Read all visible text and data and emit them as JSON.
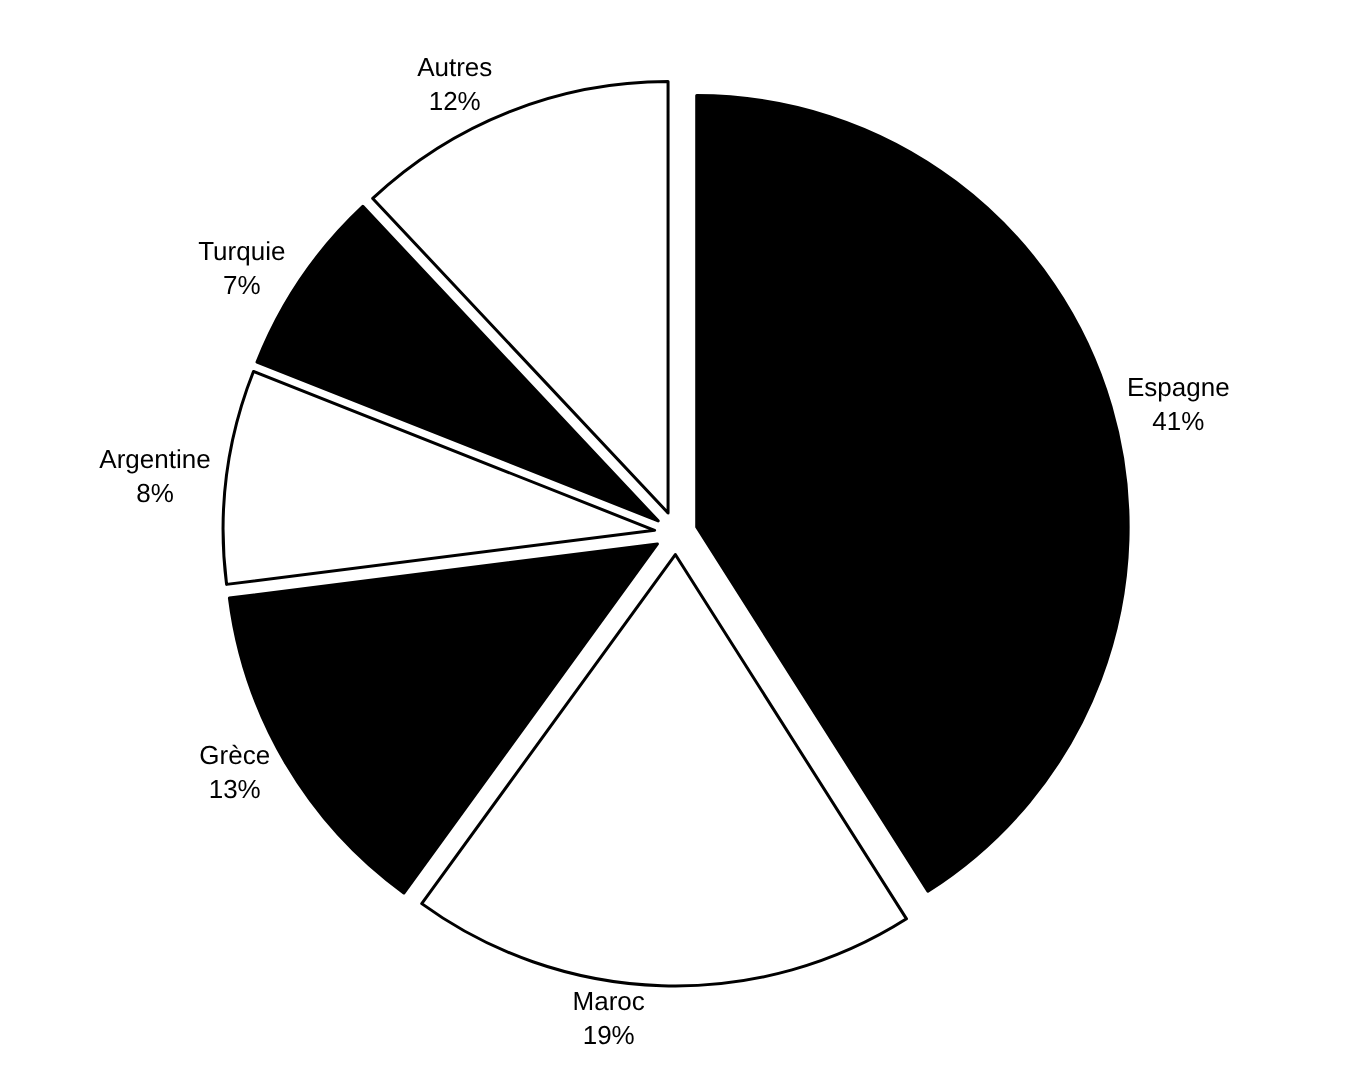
{
  "chart_data": {
    "type": "pie",
    "categories": [
      "Espagne",
      "Maroc",
      "Grèce",
      "Argentine",
      "Turquie",
      "Autres"
    ],
    "values": [
      41,
      19,
      13,
      8,
      7,
      12
    ],
    "value_labels": [
      "41%",
      "19%",
      "13%",
      "8%",
      "7%",
      "12%"
    ],
    "colors": [
      "#000000",
      "#ffffff",
      "#000000",
      "#ffffff",
      "#000000",
      "#ffffff"
    ],
    "legend": false
  }
}
